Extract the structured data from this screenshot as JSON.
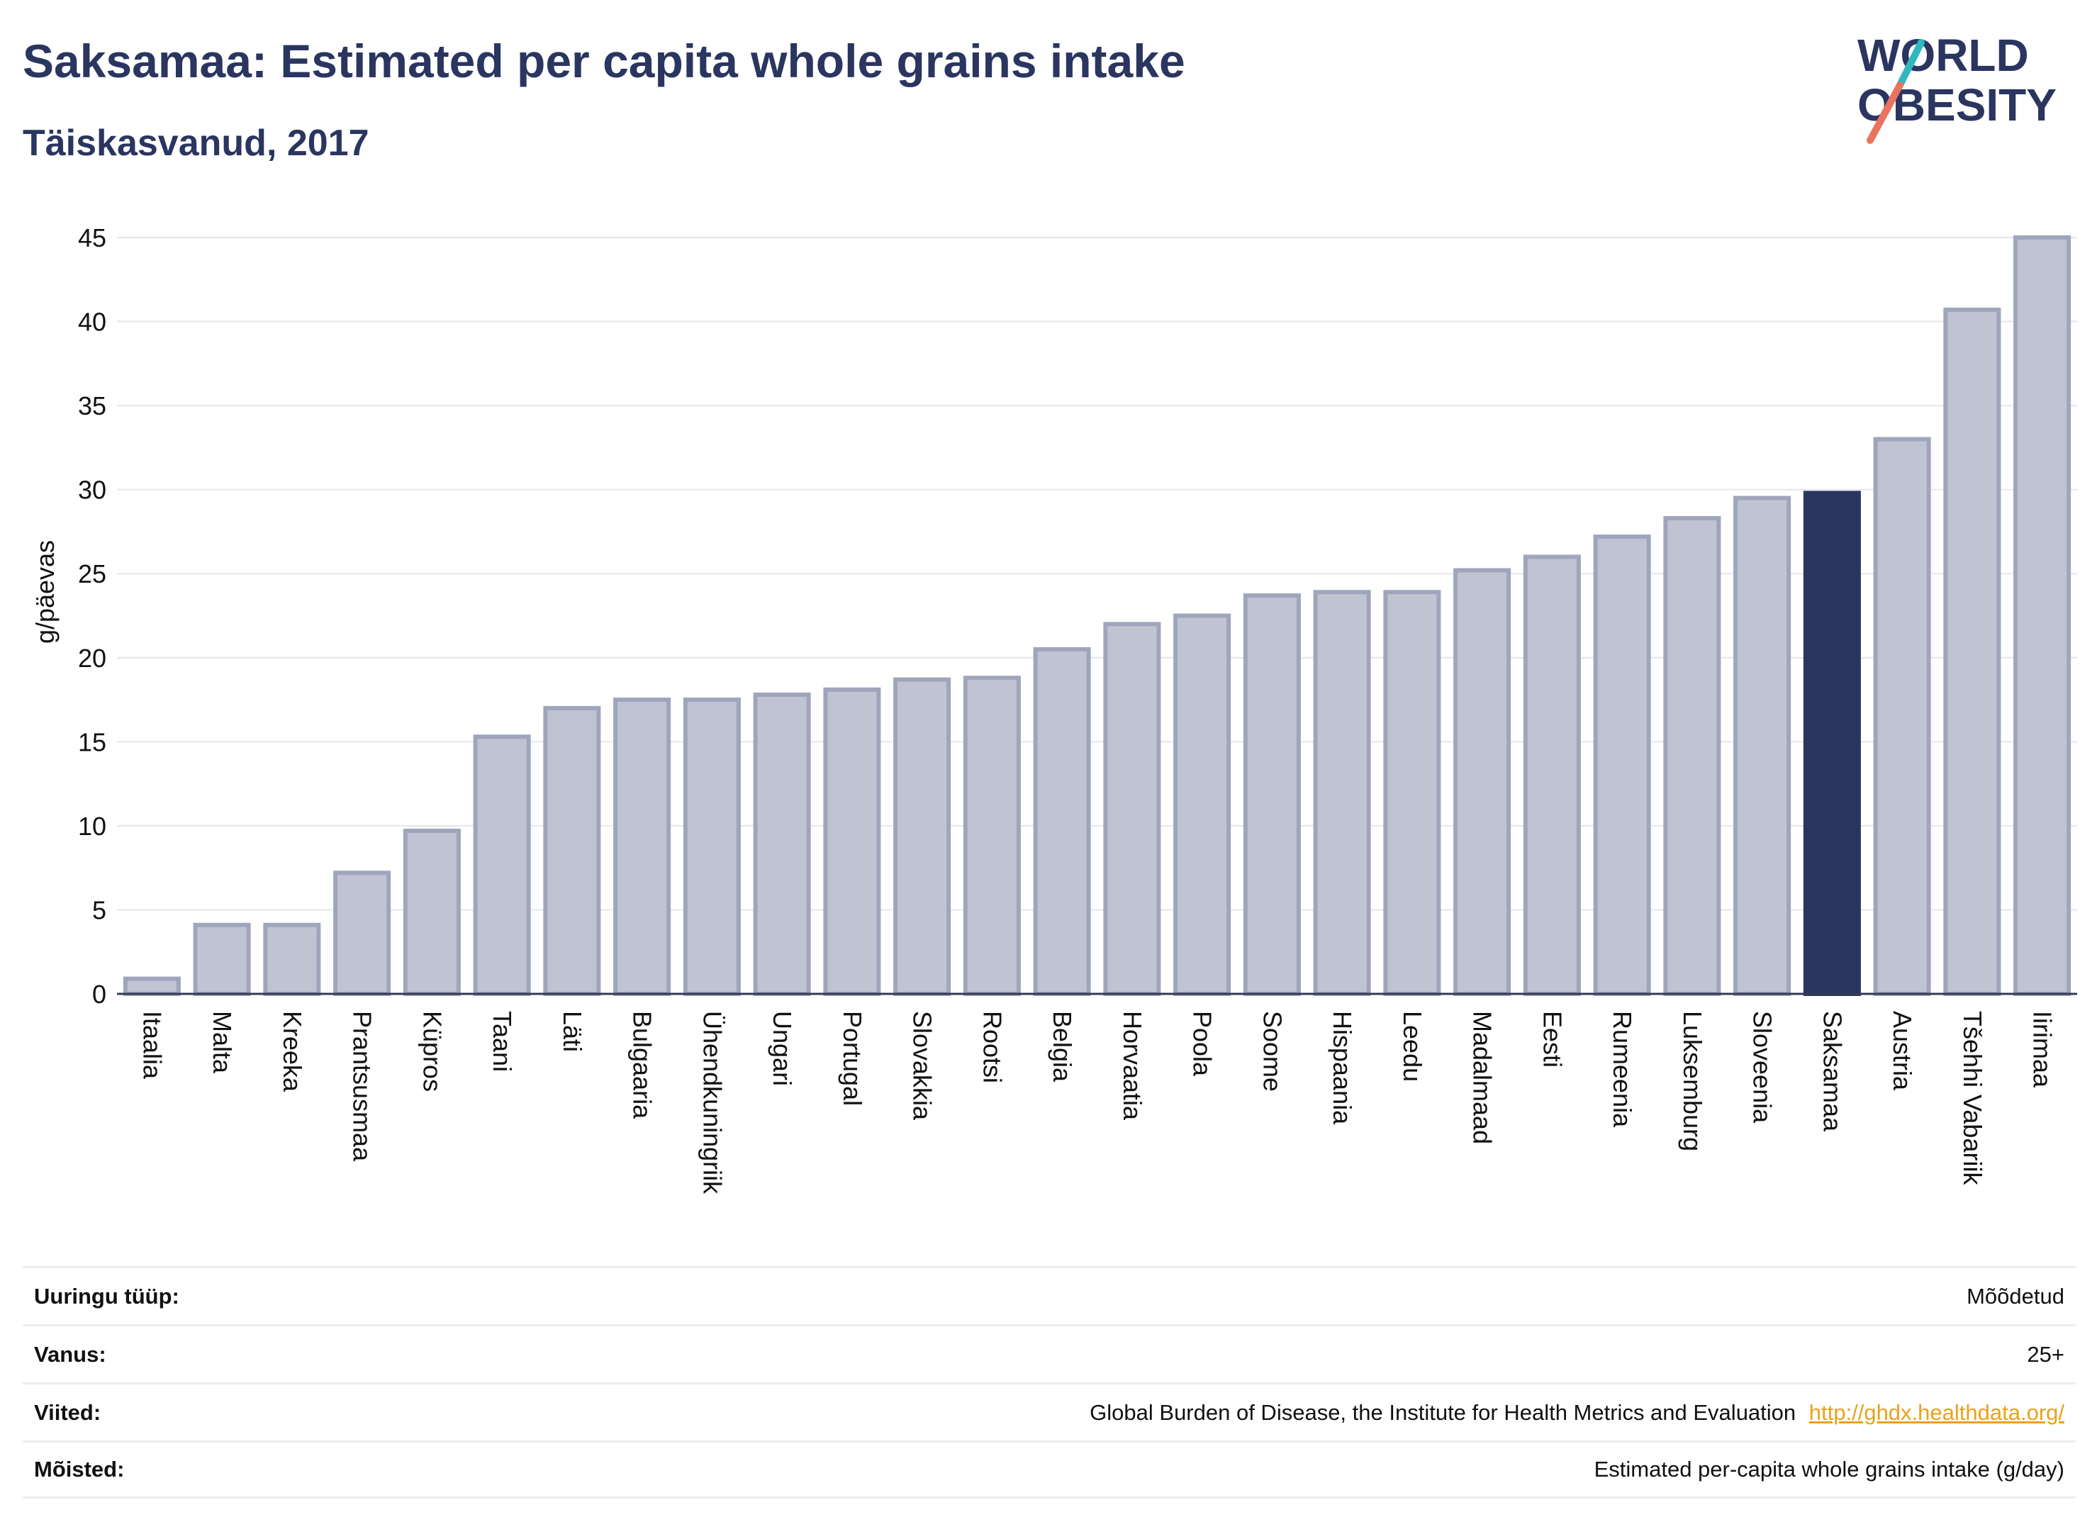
{
  "title": "Saksamaa: Estimated per capita whole grains intake",
  "subtitle": "Täiskasvanud, 2017",
  "logo": {
    "line1": "WORLD",
    "line2": "OBESITY"
  },
  "colors": {
    "highlight": "#2a3560",
    "bar_fill": "#c0c3d1",
    "bar_stroke": "#9fa5bc",
    "grid": "#e6e6ec",
    "axis": "#333a55"
  },
  "chart_data": {
    "type": "bar",
    "ylabel": "g/päevas",
    "ylim": [
      0,
      45
    ],
    "yticks": [
      "0",
      "5",
      "10",
      "15",
      "20",
      "25",
      "30",
      "35",
      "40",
      "45"
    ],
    "highlight": "Saksamaa",
    "categories": [
      "Itaalia",
      "Malta",
      "Kreeka",
      "Prantsusmaa",
      "Küpros",
      "Taani",
      "Läti",
      "Bulgaaria",
      "Ühendkuningriik",
      "Ungari",
      "Portugal",
      "Slovakkia",
      "Rootsi",
      "Belgia",
      "Horvaatia",
      "Poola",
      "Soome",
      "Hispaania",
      "Leedu",
      "Madalmaad",
      "Eesti",
      "Rumeenia",
      "Luksemburg",
      "Sloveenia",
      "Saksamaa",
      "Austria",
      "Tšehhi Vabariik",
      "Iirimaa"
    ],
    "values": [
      0.9,
      4.1,
      4.1,
      7.2,
      9.7,
      15.3,
      17.0,
      17.5,
      17.5,
      17.8,
      18.1,
      18.7,
      18.8,
      20.5,
      22.0,
      22.5,
      23.7,
      23.9,
      23.9,
      25.2,
      26.0,
      27.2,
      28.3,
      29.5,
      29.8,
      33.0,
      40.7,
      45.0
    ]
  },
  "meta": [
    {
      "label": "Uuringu tüüp:",
      "value": "Mõõdetud"
    },
    {
      "label": "Vanus:",
      "value": "25+"
    },
    {
      "label": "Viited:",
      "value": "Global Burden of Disease, the Institute for Health Metrics and Evaluation",
      "link": "http://ghdx.healthdata.org/"
    },
    {
      "label": "Mõisted:",
      "value": "Estimated per-capita whole grains intake (g/day)"
    }
  ]
}
